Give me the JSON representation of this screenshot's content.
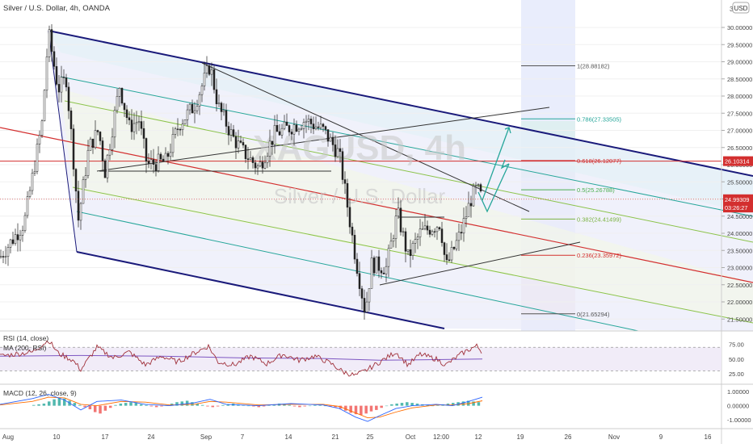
{
  "header": {
    "title": "Silver / U.S. Dollar, 4h, OANDA",
    "currency": "USD"
  },
  "watermark": {
    "symbol": "XAGUSD, 4h",
    "name": "Silver / U.S. Dollar"
  },
  "colors": {
    "channel_border": "#1a1a7a",
    "median_line": "#d32f2f",
    "inner_green": "#8bc34a",
    "inner_teal": "#26a69a",
    "candle": "#222222",
    "rsi_line": "#a0303a",
    "rsi_ma": "#7e57c2",
    "rsi_band": "#ede7f6",
    "macd_line": "#2962ff",
    "macd_signal": "#ff6d00",
    "hist_up": "#26a69a",
    "hist_down": "#ef5350",
    "fib_box": "#dfe5fb",
    "arrow": "#26a69a"
  },
  "chart_data": {
    "type": "candlestick",
    "y_axis": {
      "range": [
        21.2,
        30.8
      ],
      "ticks": [
        "30.00000",
        "29.50000",
        "29.00000",
        "28.50000",
        "28.00000",
        "27.50000",
        "27.00000",
        "26.50000",
        "26.00000",
        "25.50000",
        "25.00000",
        "24.50000",
        "24.00000",
        "23.50000",
        "23.00000",
        "22.50000",
        "22.00000",
        "21.50000"
      ],
      "tick_values": [
        30.0,
        29.5,
        29.0,
        28.5,
        28.0,
        27.5,
        27.0,
        26.5,
        26.0,
        25.5,
        25.0,
        24.5,
        24.0,
        23.5,
        23.0,
        22.5,
        22.0,
        21.5
      ],
      "top_partial": "30.50"
    },
    "x_axis": {
      "ticks": [
        "Aug",
        "10",
        "17",
        "24",
        "Sep",
        "7",
        "14",
        "21",
        "25",
        "Oct",
        "12:00",
        "12",
        "19",
        "26",
        "Nov",
        "9",
        "16"
      ]
    },
    "price_path": [
      [
        0,
        23.3
      ],
      [
        30,
        24.3
      ],
      [
        52,
        27.2
      ],
      [
        60,
        29.85
      ],
      [
        72,
        28.2
      ],
      [
        82,
        28.5
      ],
      [
        90,
        26.4
      ],
      [
        97,
        24.4
      ],
      [
        110,
        26.5
      ],
      [
        122,
        27.0
      ],
      [
        130,
        25.8
      ],
      [
        148,
        28.3
      ],
      [
        160,
        27.1
      ],
      [
        172,
        27.3
      ],
      [
        182,
        26.0
      ],
      [
        205,
        26.1
      ],
      [
        222,
        27.2
      ],
      [
        240,
        27.7
      ],
      [
        260,
        28.9
      ],
      [
        270,
        27.7
      ],
      [
        288,
        26.8
      ],
      [
        300,
        26.4
      ],
      [
        320,
        25.9
      ],
      [
        340,
        26.9
      ],
      [
        360,
        27.1
      ],
      [
        378,
        27.3
      ],
      [
        400,
        27.0
      ],
      [
        420,
        26.3
      ],
      [
        432,
        24.5
      ],
      [
        440,
        23.3
      ],
      [
        452,
        21.7
      ],
      [
        460,
        23.1
      ],
      [
        478,
        23.0
      ],
      [
        492,
        24.6
      ],
      [
        505,
        23.3
      ],
      [
        520,
        24.0
      ],
      [
        545,
        24.3
      ],
      [
        552,
        23.0
      ],
      [
        570,
        24.0
      ],
      [
        583,
        25.0
      ],
      [
        590,
        25.3
      ],
      [
        597,
        24.99
      ]
    ],
    "price_labels": [
      {
        "value": 26.10314,
        "text": "26.10314",
        "color": "#d32f2f"
      },
      {
        "value": 24.99309,
        "text": "24.99309",
        "color": "#d32f2f"
      },
      {
        "value": 24.75,
        "text": "03:26:27",
        "color": "#d32f2f"
      }
    ],
    "fib_levels": [
      {
        "level": "1",
        "price": 28.88182,
        "label": "1(28.88182)",
        "color": "#555555"
      },
      {
        "level": "0.786",
        "price": 27.33505,
        "label": "0.786(27.33505)",
        "color": "#26a69a"
      },
      {
        "level": "0.618",
        "price": 26.12077,
        "label": "0.618(26.12077)",
        "color": "#d32f2f"
      },
      {
        "level": "0.5",
        "price": 25.26788,
        "label": "0.5(25.26788)",
        "color": "#4caf50"
      },
      {
        "level": "0.382",
        "price": 24.41499,
        "label": "0.382(24.41499)",
        "color": "#7cb342"
      },
      {
        "level": "0.236",
        "price": 23.35972,
        "label": "0.236(23.35972)",
        "color": "#d32f2f"
      },
      {
        "level": "0",
        "price": 21.65294,
        "label": "0(21.65294)",
        "color": "#555555"
      }
    ],
    "rsi": {
      "label_rsi": "RSI (14, close)",
      "label_ma": "MA (200, RSI)",
      "ticks": [
        "75.00",
        "50.00",
        "25.00"
      ],
      "tick_values": [
        75,
        50,
        25
      ],
      "range": [
        10,
        95
      ],
      "band": [
        30,
        70
      ],
      "path": [
        [
          0,
          55
        ],
        [
          40,
          62
        ],
        [
          60,
          82
        ],
        [
          72,
          60
        ],
        [
          90,
          48
        ],
        [
          100,
          32
        ],
        [
          120,
          70
        ],
        [
          140,
          52
        ],
        [
          160,
          62
        ],
        [
          180,
          40
        ],
        [
          200,
          55
        ],
        [
          220,
          45
        ],
        [
          240,
          60
        ],
        [
          258,
          72
        ],
        [
          270,
          45
        ],
        [
          290,
          40
        ],
        [
          310,
          55
        ],
        [
          330,
          42
        ],
        [
          350,
          58
        ],
        [
          370,
          48
        ],
        [
          390,
          55
        ],
        [
          410,
          42
        ],
        [
          425,
          28
        ],
        [
          440,
          22
        ],
        [
          452,
          30
        ],
        [
          470,
          45
        ],
        [
          490,
          62
        ],
        [
          505,
          40
        ],
        [
          520,
          58
        ],
        [
          540,
          50
        ],
        [
          552,
          40
        ],
        [
          570,
          58
        ],
        [
          583,
          68
        ],
        [
          590,
          72
        ],
        [
          597,
          62
        ]
      ],
      "ma_path": [
        [
          0,
          55
        ],
        [
          100,
          56
        ],
        [
          200,
          55
        ],
        [
          300,
          52
        ],
        [
          400,
          51
        ],
        [
          470,
          48
        ],
        [
          530,
          49
        ],
        [
          597,
          50
        ]
      ]
    },
    "macd": {
      "label": "MACD (12, 26, close, 9)",
      "ticks": [
        "1.00000",
        "0.00000",
        "-1.00000"
      ],
      "tick_values": [
        1,
        0,
        -1
      ],
      "range": [
        -1.5,
        1.4
      ],
      "hist": [
        0.05,
        0.1,
        0.15,
        0.3,
        0.45,
        0.55,
        0.5,
        0.35,
        0.2,
        0.05,
        -0.1,
        -0.25,
        -0.45,
        -0.55,
        -0.35,
        -0.15,
        0.05,
        0.15,
        0.2,
        0.25,
        0.2,
        0.1,
        0.05,
        -0.05,
        -0.1,
        -0.05,
        0.05,
        0.15,
        0.25,
        0.3,
        0.35,
        0.25,
        0.15,
        0.05,
        -0.05,
        -0.1,
        -0.05,
        0.05,
        0.1,
        0.15,
        0.1,
        0.05,
        0.0,
        -0.05,
        -0.1,
        -0.05,
        0.05,
        0.1,
        0.15,
        0.1,
        0.05,
        -0.05,
        -0.1,
        -0.05,
        0.0,
        0.05,
        0.05,
        0.0,
        -0.05,
        -0.1,
        -0.2,
        -0.35,
        -0.5,
        -0.6,
        -0.65,
        -0.55,
        -0.4,
        -0.3,
        -0.15,
        0.0,
        0.1,
        0.15,
        0.2,
        0.25,
        0.2,
        0.15,
        0.1,
        0.05,
        0.0,
        0.05,
        0.1,
        0.15,
        0.2,
        0.25,
        0.3,
        0.35,
        0.3,
        0.25
      ],
      "macd_path": [
        [
          0,
          0.1
        ],
        [
          40,
          0.5
        ],
        [
          60,
          0.8
        ],
        [
          80,
          0.4
        ],
        [
          100,
          -0.3
        ],
        [
          120,
          0.3
        ],
        [
          150,
          0.4
        ],
        [
          180,
          0.1
        ],
        [
          210,
          0.0
        ],
        [
          240,
          0.2
        ],
        [
          260,
          0.45
        ],
        [
          280,
          0.1
        ],
        [
          320,
          0.0
        ],
        [
          360,
          0.15
        ],
        [
          400,
          0.05
        ],
        [
          420,
          -0.2
        ],
        [
          440,
          -0.8
        ],
        [
          455,
          -1.1
        ],
        [
          470,
          -0.7
        ],
        [
          490,
          -0.2
        ],
        [
          510,
          0.0
        ],
        [
          540,
          0.1
        ],
        [
          560,
          0.0
        ],
        [
          580,
          0.3
        ],
        [
          597,
          0.6
        ]
      ],
      "signal_path": [
        [
          0,
          0.05
        ],
        [
          40,
          0.3
        ],
        [
          60,
          0.6
        ],
        [
          80,
          0.55
        ],
        [
          100,
          0.1
        ],
        [
          120,
          0.0
        ],
        [
          150,
          0.3
        ],
        [
          180,
          0.25
        ],
        [
          210,
          0.05
        ],
        [
          240,
          0.1
        ],
        [
          260,
          0.3
        ],
        [
          280,
          0.25
        ],
        [
          320,
          0.05
        ],
        [
          360,
          0.1
        ],
        [
          400,
          0.1
        ],
        [
          420,
          -0.05
        ],
        [
          440,
          -0.5
        ],
        [
          455,
          -0.85
        ],
        [
          470,
          -0.8
        ],
        [
          490,
          -0.45
        ],
        [
          510,
          -0.15
        ],
        [
          540,
          0.05
        ],
        [
          560,
          0.05
        ],
        [
          580,
          0.15
        ],
        [
          597,
          0.35
        ]
      ]
    }
  }
}
